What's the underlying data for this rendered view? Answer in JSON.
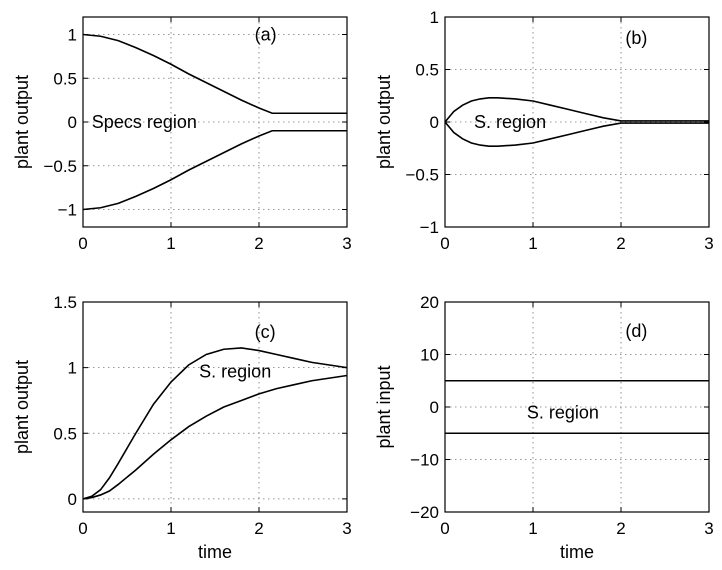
{
  "chart_data": [
    {
      "id": "a",
      "type": "line",
      "annotation": "(a)",
      "region_label": "Specs region",
      "xlabel": "",
      "ylabel": "plant output",
      "xlim": [
        0,
        3
      ],
      "ylim": [
        -1.2,
        1.2
      ],
      "xticks": [
        0,
        1,
        2,
        3
      ],
      "xtick_labels": [
        "0",
        "1",
        "2",
        "3"
      ],
      "yticks": [
        -1,
        -0.5,
        0,
        0.5,
        1
      ],
      "ytick_labels": [
        "−1",
        "−0.5",
        "0",
        "0.5",
        "1"
      ],
      "grid": true,
      "annotation_pos": [
        1.95,
        1.0
      ],
      "region_label_pos": [
        0.1,
        0.0
      ],
      "series": [
        {
          "x": [
            0,
            0.2,
            0.4,
            0.6,
            0.8,
            1.0,
            1.2,
            1.4,
            1.6,
            1.8,
            2.0,
            2.15,
            2.5,
            3.0
          ],
          "y": [
            1.0,
            0.98,
            0.93,
            0.85,
            0.76,
            0.66,
            0.55,
            0.45,
            0.35,
            0.25,
            0.16,
            0.1,
            0.1,
            0.1
          ]
        },
        {
          "x": [
            0,
            0.2,
            0.4,
            0.6,
            0.8,
            1.0,
            1.2,
            1.4,
            1.6,
            1.8,
            2.0,
            2.15,
            2.5,
            3.0
          ],
          "y": [
            -1.0,
            -0.98,
            -0.93,
            -0.85,
            -0.76,
            -0.66,
            -0.55,
            -0.45,
            -0.35,
            -0.25,
            -0.16,
            -0.1,
            -0.1,
            -0.1
          ]
        }
      ]
    },
    {
      "id": "b",
      "type": "line",
      "annotation": "(b)",
      "region_label": "S. region",
      "xlabel": "",
      "ylabel": "plant output",
      "xlim": [
        0,
        3
      ],
      "ylim": [
        -1,
        1
      ],
      "xticks": [
        0,
        1,
        2,
        3
      ],
      "xtick_labels": [
        "0",
        "1",
        "2",
        "3"
      ],
      "yticks": [
        -1,
        -0.5,
        0,
        0.5,
        1
      ],
      "ytick_labels": [
        "−1",
        "−0.5",
        "0",
        "0.5",
        "1"
      ],
      "grid": true,
      "annotation_pos": [
        2.05,
        0.8
      ],
      "region_label_pos": [
        0.33,
        0.0
      ],
      "series": [
        {
          "x": [
            0,
            0.1,
            0.2,
            0.3,
            0.4,
            0.5,
            0.6,
            0.8,
            1.0,
            1.2,
            1.4,
            1.6,
            1.8,
            2.0,
            2.5,
            3.0
          ],
          "y": [
            0,
            0.1,
            0.16,
            0.2,
            0.22,
            0.23,
            0.23,
            0.22,
            0.2,
            0.16,
            0.12,
            0.08,
            0.04,
            0.01,
            0.01,
            0.01
          ]
        },
        {
          "x": [
            0,
            0.1,
            0.2,
            0.3,
            0.4,
            0.5,
            0.6,
            0.8,
            1.0,
            1.2,
            1.4,
            1.6,
            1.8,
            2.0,
            2.5,
            3.0
          ],
          "y": [
            0,
            -0.1,
            -0.16,
            -0.2,
            -0.22,
            -0.23,
            -0.23,
            -0.22,
            -0.2,
            -0.16,
            -0.12,
            -0.08,
            -0.04,
            -0.01,
            -0.01,
            -0.01
          ]
        }
      ]
    },
    {
      "id": "c",
      "type": "line",
      "annotation": "(c)",
      "region_label": "S. region",
      "xlabel": "time",
      "ylabel": "plant output",
      "xlim": [
        0,
        3
      ],
      "ylim": [
        -0.1,
        1.5
      ],
      "xticks": [
        0,
        1,
        2,
        3
      ],
      "xtick_labels": [
        "0",
        "1",
        "2",
        "3"
      ],
      "yticks": [
        0,
        0.5,
        1,
        1.5
      ],
      "ytick_labels": [
        "0",
        "0.5",
        "1",
        "1.5"
      ],
      "grid": true,
      "annotation_pos": [
        1.95,
        1.27
      ],
      "region_label_pos": [
        1.32,
        0.97
      ],
      "series": [
        {
          "x": [
            0,
            0.1,
            0.2,
            0.3,
            0.4,
            0.6,
            0.8,
            1.0,
            1.2,
            1.4,
            1.6,
            1.8,
            2.0,
            2.2,
            2.4,
            2.6,
            2.8,
            3.0
          ],
          "y": [
            0,
            0.02,
            0.07,
            0.16,
            0.27,
            0.5,
            0.72,
            0.89,
            1.02,
            1.1,
            1.14,
            1.15,
            1.13,
            1.1,
            1.07,
            1.04,
            1.02,
            1.0
          ]
        },
        {
          "x": [
            0,
            0.1,
            0.2,
            0.3,
            0.4,
            0.6,
            0.8,
            1.0,
            1.2,
            1.4,
            1.6,
            1.8,
            2.0,
            2.2,
            2.4,
            2.6,
            2.8,
            3.0
          ],
          "y": [
            0,
            0.01,
            0.03,
            0.06,
            0.11,
            0.22,
            0.34,
            0.45,
            0.55,
            0.63,
            0.7,
            0.75,
            0.8,
            0.84,
            0.87,
            0.9,
            0.92,
            0.94
          ]
        }
      ]
    },
    {
      "id": "d",
      "type": "line",
      "annotation": "(d)",
      "region_label": "S. region",
      "xlabel": "time",
      "ylabel": "plant input",
      "xlim": [
        0,
        3
      ],
      "ylim": [
        -20,
        20
      ],
      "xticks": [
        0,
        1,
        2,
        3
      ],
      "xtick_labels": [
        "0",
        "1",
        "2",
        "3"
      ],
      "yticks": [
        -20,
        -10,
        0,
        10,
        20
      ],
      "ytick_labels": [
        "−20",
        "−10",
        "0",
        "10",
        "20"
      ],
      "grid": true,
      "annotation_pos": [
        2.05,
        14.5
      ],
      "region_label_pos": [
        0.93,
        -1.0
      ],
      "series": [
        {
          "x": [
            0,
            3
          ],
          "y": [
            5,
            5
          ]
        },
        {
          "x": [
            0,
            3
          ],
          "y": [
            -5,
            -5
          ]
        }
      ]
    }
  ]
}
